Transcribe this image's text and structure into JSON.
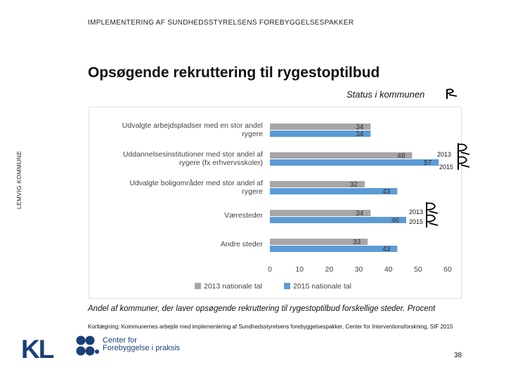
{
  "header": {
    "top_label": "IMPLEMENTERING AF SUNDHEDSSTYRELSENS FOREBYGGELSESPAKKER",
    "side_label": "LEMVIG KOMMUNE",
    "title": "Opsøgende rekruttering til rygestoptilbud",
    "status": "Status i kommunen"
  },
  "year_tags": {
    "group1_2013": "2013",
    "group1_2015": "2015",
    "group2_2013": "2013",
    "group2_2015": "2015"
  },
  "footer": {
    "caption": "Andel af kommuner, der laver opsøgende rekruttering til rygestoptilbud forskellige steder. Procent",
    "source": "Kortlægning: Kommunernes arbejde med implementering af Sundhedsstyrelsens forebyggelsespakker, Center for Interventionsforskning, SIF 2015",
    "logo_kl": "KL",
    "cfp_line1": "Center for",
    "cfp_line2": "Forebyggelse i praksis",
    "page_number": "38"
  },
  "colors": {
    "series_2013": "#a6a6a6",
    "series_2015": "#5b9bd5",
    "brand": "#1b3f7a",
    "text": "#111111"
  },
  "chart_data": {
    "type": "bar",
    "orientation": "horizontal",
    "categories": [
      [
        "Udvalgte arbejdspladser med en stor andel",
        "rygere"
      ],
      [
        "Uddannelsesinstitutioner med stor andel af",
        "rygere (fx erhvervsskoler)"
      ],
      [
        "Udvalgte boligområder med stor andel af",
        "rygere"
      ],
      [
        "Væresteder"
      ],
      [
        "Andre steder"
      ]
    ],
    "series": [
      {
        "name": "2013 nationale tal",
        "values": [
          34,
          48,
          32,
          34,
          33
        ]
      },
      {
        "name": "2015 nationale tal",
        "values": [
          34,
          57,
          43,
          46,
          43
        ]
      }
    ],
    "xlim": [
      0,
      60
    ],
    "xticks": [
      0,
      10,
      20,
      30,
      40,
      50,
      60
    ],
    "legend_position": "bottom",
    "grid": false
  }
}
